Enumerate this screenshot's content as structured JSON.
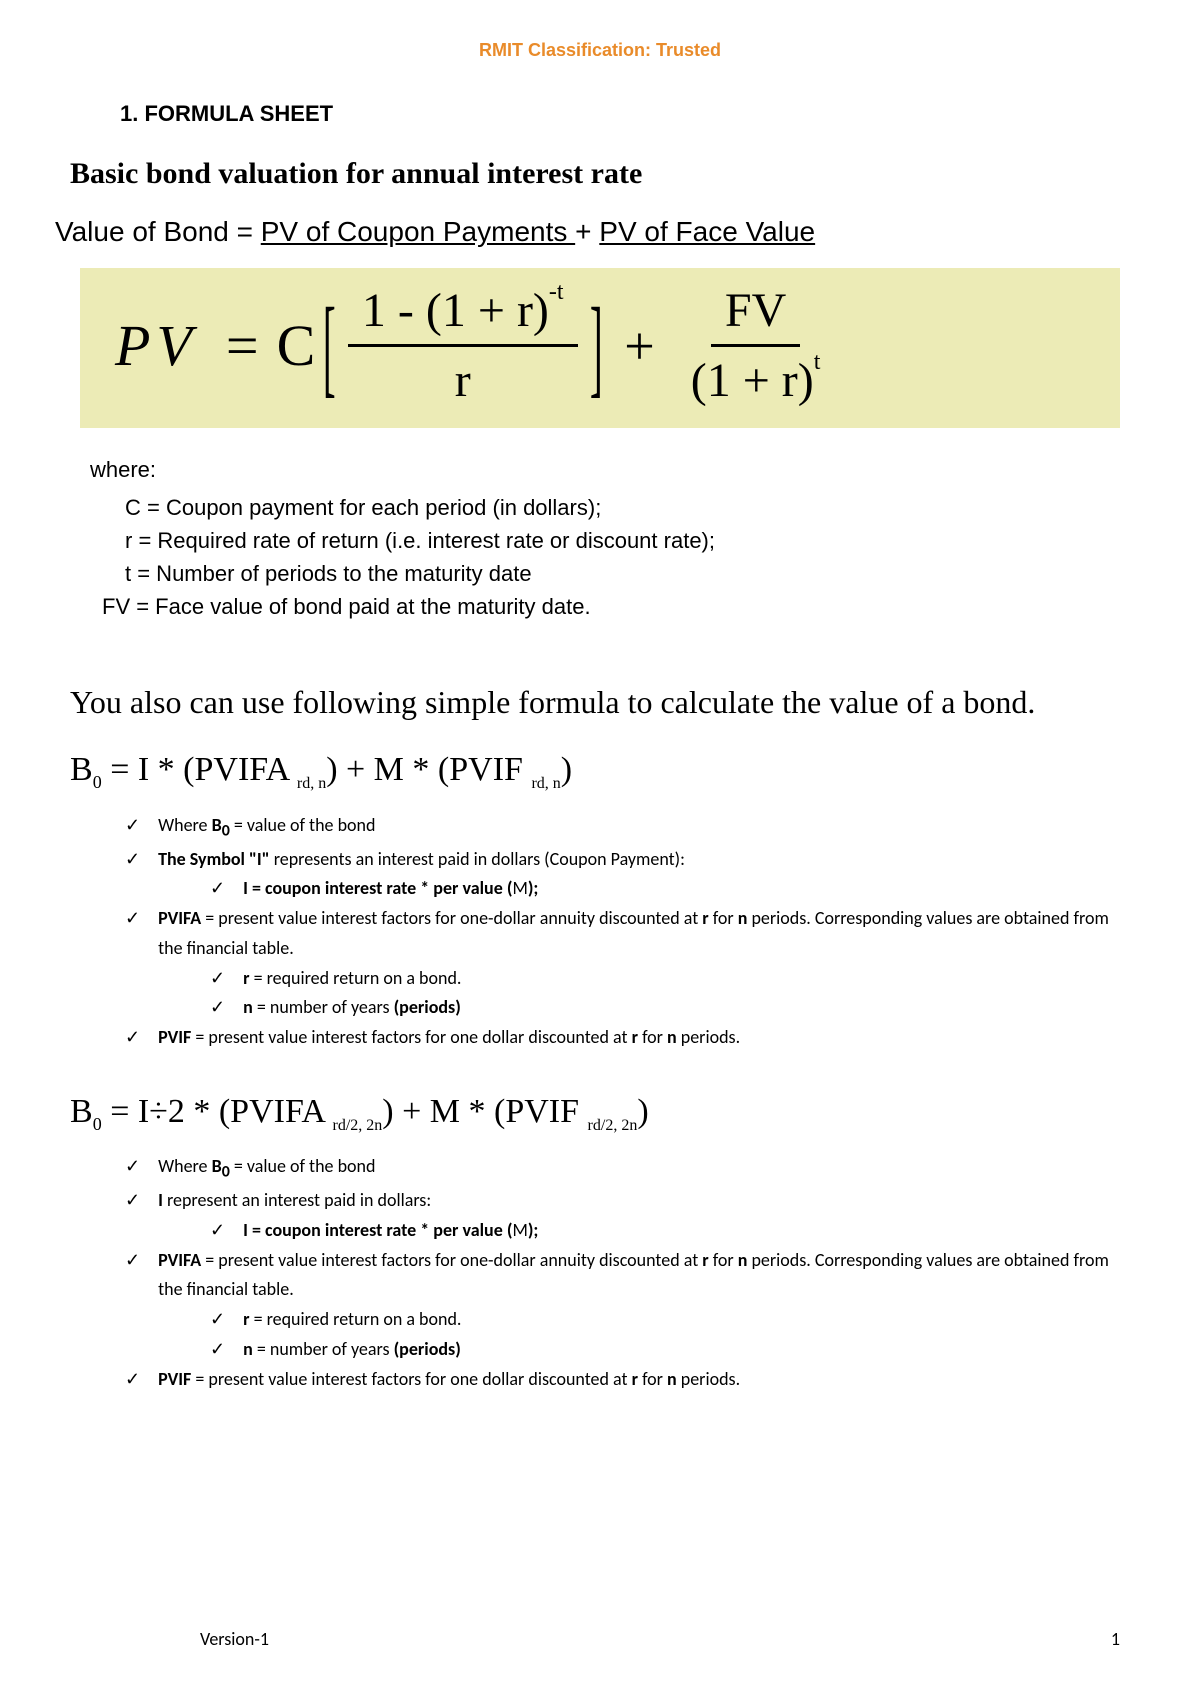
{
  "header": {
    "classification": "RMIT Classification: Trusted",
    "classification_color": "#e98b2a"
  },
  "section": {
    "number": "1.  FORMULA SHEET",
    "title": "Basic bond valuation for annual interest rate"
  },
  "bond_eq": {
    "lhs": "Value of Bond = ",
    "part1": "PV of Coupon Payments ",
    "plus": "+ ",
    "part2": "PV of Face Value"
  },
  "formula_box": {
    "background": "#ecebb6",
    "pv": "PV",
    "eq": "=",
    "c": "C",
    "frac1_num": "1 - (1 + r)",
    "frac1_num_sup": "-t",
    "frac1_den": "r",
    "plus": "+",
    "frac2_num": "FV",
    "frac2_den": "(1 + r)",
    "frac2_den_sup": "t"
  },
  "where": {
    "label": "where:",
    "c": "C = Coupon payment for each period (in dollars);",
    "r": "r = Required rate of return (i.e. interest rate or discount rate);",
    "t": "t = Number of periods to the maturity date",
    "fv": "FV = Face value of bond paid at the maturity date."
  },
  "alt": {
    "intro": "You also can use following simple formula to calculate the value of a bond.",
    "f1_lhs": "B",
    "f1_sub": "0",
    "f1_body": " = I * (PVIFA ",
    "f1_sub1": "rd, n",
    "f1_mid": ") + M * (PVIF ",
    "f1_sub2": "rd, n",
    "f1_end": ")"
  },
  "list1": {
    "i1_pre": "Where ",
    "i1_b": "B",
    "i1_sub": "0",
    "i1_post": " = value of the bond",
    "i2_pre": "The Symbol \"I\"",
    "i2_post": " represents an interest paid in dollars (Coupon Payment):",
    "i2a_pre": "I = coupon interest rate * per value (",
    "i2a_m": "M",
    "i2a_post": ");",
    "i3_pre": "PVIFA",
    "i3_mid1": " = present value interest factors for one-dollar annuity discounted at ",
    "i3_r": "r",
    "i3_mid2": " for ",
    "i3_n": "n",
    "i3_post": " periods. Corresponding values are obtained from the financial table.",
    "i3a_r": "r",
    "i3a_post": " = required return on a bond.",
    "i3b_n": "n",
    "i3b_mid": " = number of years ",
    "i3b_periods": "(periods)",
    "i4_pre": "PVIF",
    "i4_mid1": " = present value interest factors for one dollar discounted at ",
    "i4_r": "r",
    "i4_mid2": " for ",
    "i4_n": "n",
    "i4_post": " periods."
  },
  "alt2": {
    "lhs": "B",
    "sub": "0",
    "body": " = I÷2 * (PVIFA ",
    "sub1": "rd/2, 2n",
    "mid": ") + M * (PVIF ",
    "sub2": "rd/2, 2n",
    "end": ")"
  },
  "list2": {
    "i1_pre": "Where ",
    "i1_b": "B",
    "i1_sub": "0",
    "i1_post": " = value of the bond",
    "i2_pre": "I",
    "i2_post": " represent an interest paid in dollars:",
    "i2a_pre": "I = coupon interest rate * per value (",
    "i2a_m": "M",
    "i2a_post": ");",
    "i3_pre": "PVIFA",
    "i3_mid1": " = present value interest factors for one-dollar annuity discounted at ",
    "i3_r": "r",
    "i3_mid2": " for ",
    "i3_n": "n",
    "i3_post": " periods. Corresponding values are obtained from the financial table.",
    "i3a_r": "r",
    "i3a_post": " = required return on a bond.",
    "i3b_n": "n",
    "i3b_mid": " = number of years ",
    "i3b_periods": "(periods)",
    "i4_pre": "PVIF",
    "i4_mid1": " = present value interest factors for one dollar discounted at ",
    "i4_r": "r",
    "i4_mid2": " for ",
    "i4_n": "n",
    "i4_post": " periods."
  },
  "footer": {
    "version": "Version-1",
    "page": "1"
  },
  "check_glyph": "✓"
}
